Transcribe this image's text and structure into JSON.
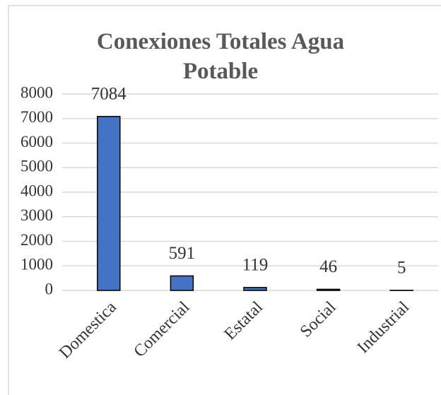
{
  "chart_data": {
    "type": "bar",
    "title": "Conexiones Totales Agua Potable",
    "categories": [
      "Domestica",
      "Comercial",
      "Estatal",
      "Social",
      "Industrial"
    ],
    "values": [
      7084,
      591,
      119,
      46,
      5
    ],
    "color": "#4472c4",
    "ylim": [
      0,
      8000
    ],
    "yticks": [
      0,
      1000,
      2000,
      3000,
      4000,
      5000,
      6000,
      7000,
      8000
    ],
    "grid": true
  }
}
